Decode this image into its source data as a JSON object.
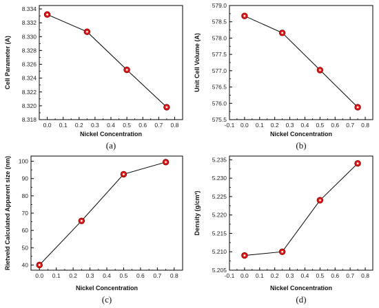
{
  "chart_data": [
    {
      "type": "line",
      "panel_label": "(a)",
      "xlabel": "Nickel Concentration",
      "ylabel": "Cell Parameter (A)",
      "x": [
        0.0,
        0.25,
        0.5,
        0.75
      ],
      "series": [
        {
          "values": [
            8.3332,
            8.3307,
            8.3252,
            8.3198
          ]
        }
      ],
      "xlim": [
        -0.05,
        0.85
      ],
      "ylim": [
        8.318,
        8.3345
      ],
      "xticks": [
        0.0,
        0.1,
        0.2,
        0.3,
        0.4,
        0.5,
        0.6,
        0.7,
        0.8
      ],
      "xtick_labels": [
        "0.0",
        "0.1",
        "0.2",
        "0.3",
        "0.4",
        "0.5",
        "0.6",
        "0.7",
        "0.8"
      ],
      "yticks": [
        8.318,
        8.32,
        8.322,
        8.324,
        8.326,
        8.328,
        8.33,
        8.332,
        8.334
      ],
      "ytick_labels": [
        "8.318",
        "8.320",
        "8.322",
        "8.324",
        "8.326",
        "8.328",
        "8.330",
        "8.332",
        "8.334"
      ],
      "grid": false,
      "marker": {
        "fill": "#e31a1c",
        "edge": "#8b0000"
      },
      "line_color": "#000000"
    },
    {
      "type": "line",
      "panel_label": "(b)",
      "xlabel": "Nickel Concentration",
      "ylabel": "Unit Cell Volume (A)",
      "x": [
        0.0,
        0.25,
        0.5,
        0.75
      ],
      "series": [
        {
          "values": [
            578.68,
            578.16,
            577.02,
            575.88
          ]
        }
      ],
      "xlim": [
        -0.1,
        0.85
      ],
      "ylim": [
        575.5,
        579.0
      ],
      "xticks": [
        -0.1,
        0.0,
        0.1,
        0.2,
        0.3,
        0.4,
        0.5,
        0.6,
        0.7,
        0.8
      ],
      "xtick_labels": [
        "-0.1",
        "0.0",
        "0.1",
        "0.2",
        "0.3",
        "0.4",
        "0.5",
        "0.6",
        "0.7",
        "0.8"
      ],
      "yticks": [
        575.5,
        576.0,
        576.5,
        577.0,
        577.5,
        578.0,
        578.5,
        579.0
      ],
      "ytick_labels": [
        "575.5",
        "576.0",
        "576.5",
        "577.0",
        "577.5",
        "578.0",
        "578.5",
        "579.0"
      ],
      "grid": false,
      "marker": {
        "fill": "#e31a1c",
        "edge": "#8b0000"
      },
      "line_color": "#000000"
    },
    {
      "type": "line",
      "panel_label": "(c)",
      "xlabel": "Nickel Concentration",
      "ylabel": "Rietveld Calculated Apparent size (nm)",
      "x": [
        0.0,
        0.25,
        0.5,
        0.75
      ],
      "series": [
        {
          "values": [
            40,
            65.5,
            92.5,
            99.5
          ]
        }
      ],
      "xlim": [
        -0.05,
        0.85
      ],
      "ylim": [
        37,
        103
      ],
      "xticks": [
        0.0,
        0.1,
        0.2,
        0.3,
        0.4,
        0.5,
        0.6,
        0.7,
        0.8
      ],
      "xtick_labels": [
        "0.0",
        "0.1",
        "0.2",
        "0.3",
        "0.4",
        "0.5",
        "0.6",
        "0.7",
        "0.8"
      ],
      "yticks": [
        40,
        50,
        60,
        70,
        80,
        90,
        100
      ],
      "ytick_labels": [
        "40",
        "50",
        "60",
        "70",
        "80",
        "90",
        "100"
      ],
      "grid": false,
      "marker": {
        "fill": "#e31a1c",
        "edge": "#8b0000"
      },
      "line_color": "#000000"
    },
    {
      "type": "line",
      "panel_label": "(d)",
      "xlabel": "Nickel Concentration",
      "ylabel": "Density (g/cm³)",
      "x": [
        0.0,
        0.25,
        0.5,
        0.75
      ],
      "series": [
        {
          "values": [
            5.209,
            5.21,
            5.224,
            5.234
          ]
        }
      ],
      "xlim": [
        -0.1,
        0.85
      ],
      "ylim": [
        5.205,
        5.236
      ],
      "xticks": [
        -0.1,
        0.0,
        0.1,
        0.2,
        0.3,
        0.4,
        0.5,
        0.6,
        0.7,
        0.8
      ],
      "xtick_labels": [
        "-0.1",
        "0.0",
        "0.1",
        "0.2",
        "0.3",
        "0.4",
        "0.5",
        "0.6",
        "0.7",
        "0.8"
      ],
      "yticks": [
        5.205,
        5.21,
        5.215,
        5.22,
        5.225,
        5.23,
        5.235
      ],
      "ytick_labels": [
        "5.205",
        "5.210",
        "5.215",
        "5.220",
        "5.225",
        "5.230",
        "5.235"
      ],
      "grid": false,
      "marker": {
        "fill": "#e31a1c",
        "edge": "#8b0000"
      },
      "line_color": "#000000"
    }
  ]
}
